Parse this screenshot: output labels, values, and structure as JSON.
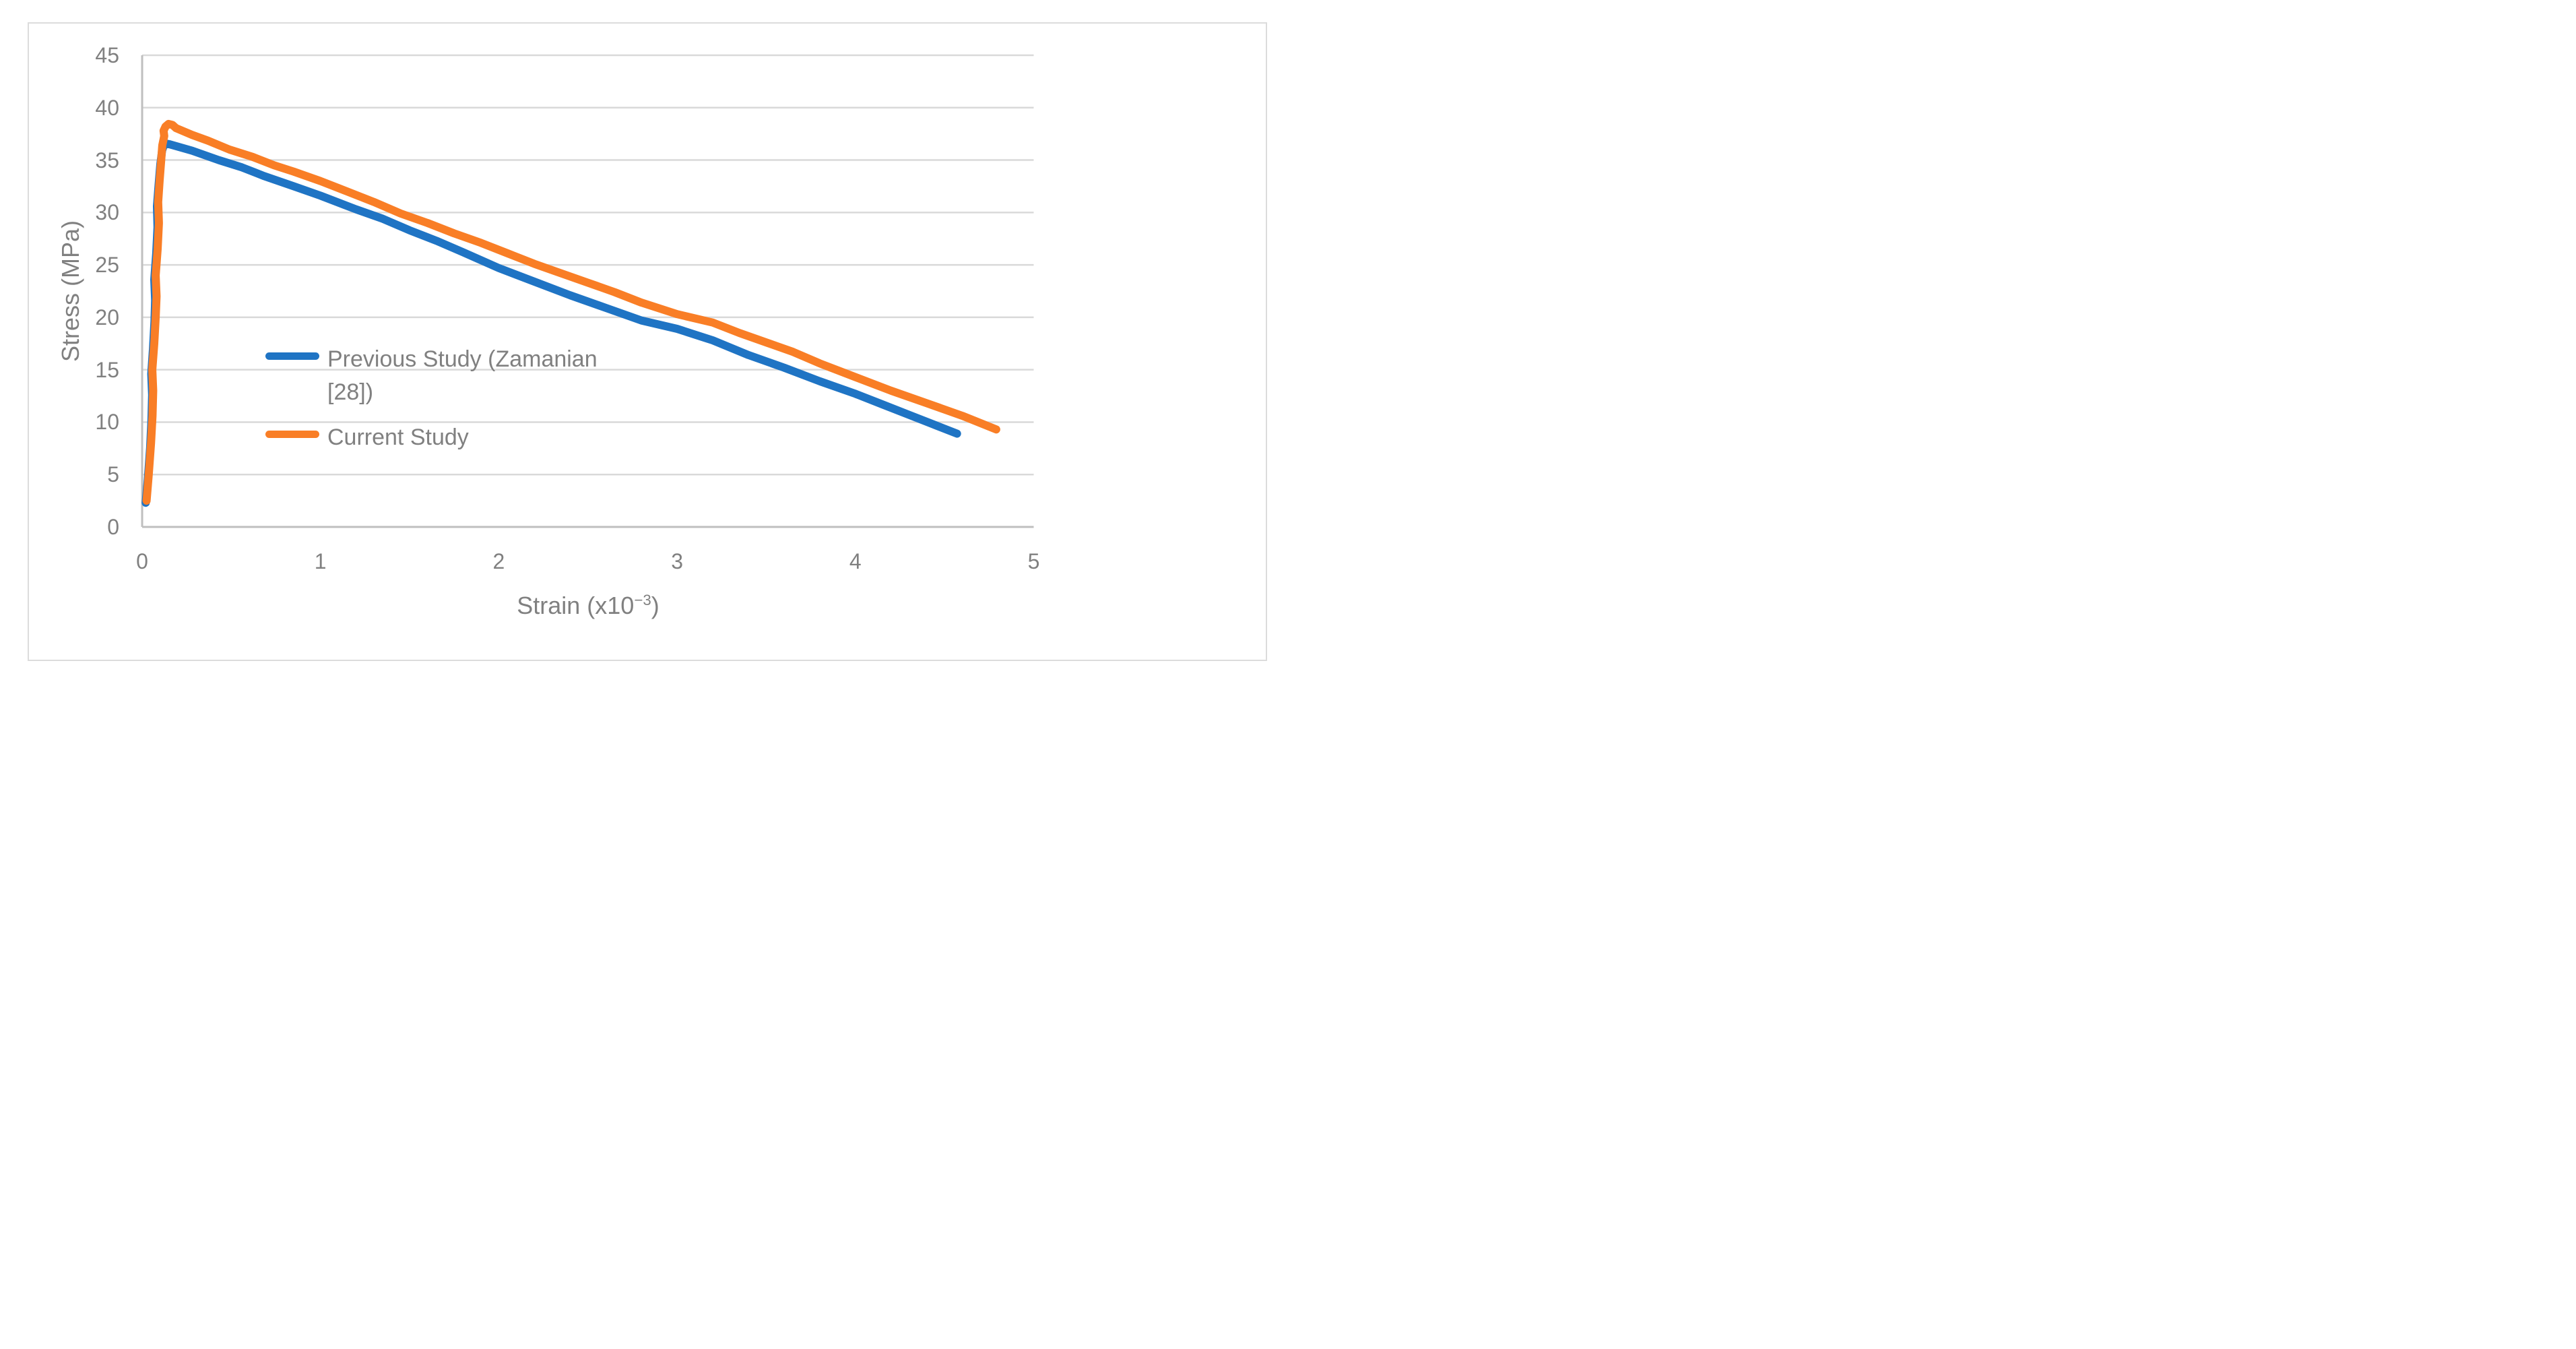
{
  "chart_data": {
    "type": "line",
    "title": "",
    "xlabel_text": "Strain (x10",
    "xlabel_sup": "−3",
    "xlabel_close": ")",
    "ylabel": "Stress (MPa)",
    "xlim": [
      0,
      5
    ],
    "ylim": [
      0,
      45
    ],
    "x_tick_labels": [
      "0",
      "1",
      "2",
      "3",
      "4",
      "5"
    ],
    "y_tick_labels": [
      "0",
      "5",
      "10",
      "15",
      "20",
      "25",
      "30",
      "35",
      "40",
      "45"
    ],
    "grid": "horizontal gridlines every 5 MPa, on",
    "legend_position": "inside plot area, left-center",
    "series": [
      {
        "name": "Previous Study (Zamanian [28])",
        "color": "#1F74C4",
        "peak_stress_mpa": 36.6,
        "end_point": [
          4.57,
          8.9
        ],
        "points": [
          [
            0.02,
            2.3
          ],
          [
            0.032,
            4.6
          ],
          [
            0.045,
            7.6
          ],
          [
            0.052,
            10.2
          ],
          [
            0.056,
            12.6
          ],
          [
            0.051,
            14.6
          ],
          [
            0.061,
            17.0
          ],
          [
            0.069,
            19.6
          ],
          [
            0.073,
            21.6
          ],
          [
            0.068,
            23.6
          ],
          [
            0.079,
            26.1
          ],
          [
            0.086,
            28.6
          ],
          [
            0.083,
            30.6
          ],
          [
            0.092,
            32.6
          ],
          [
            0.102,
            34.6
          ],
          [
            0.112,
            35.9
          ],
          [
            0.125,
            36.6
          ],
          [
            0.155,
            36.5
          ],
          [
            0.28,
            35.9
          ],
          [
            0.43,
            35.0
          ],
          [
            0.56,
            34.3
          ],
          [
            0.68,
            33.5
          ],
          [
            0.85,
            32.5
          ],
          [
            1.0,
            31.6
          ],
          [
            1.2,
            30.3
          ],
          [
            1.35,
            29.4
          ],
          [
            1.5,
            28.3
          ],
          [
            1.65,
            27.3
          ],
          [
            1.8,
            26.2
          ],
          [
            2.0,
            24.7
          ],
          [
            2.2,
            23.4
          ],
          [
            2.4,
            22.1
          ],
          [
            2.6,
            20.9
          ],
          [
            2.8,
            19.7
          ],
          [
            3.0,
            18.9
          ],
          [
            3.2,
            17.8
          ],
          [
            3.4,
            16.4
          ],
          [
            3.6,
            15.2
          ],
          [
            3.8,
            13.9
          ],
          [
            4.0,
            12.7
          ],
          [
            4.15,
            11.7
          ],
          [
            4.3,
            10.7
          ],
          [
            4.45,
            9.7
          ],
          [
            4.57,
            8.9
          ]
        ]
      },
      {
        "name": "Current Study",
        "color": "#F97E26",
        "peak_stress_mpa": 38.45,
        "end_point": [
          4.79,
          9.3
        ],
        "points": [
          [
            0.025,
            2.5
          ],
          [
            0.037,
            5.0
          ],
          [
            0.05,
            8.0
          ],
          [
            0.058,
            10.6
          ],
          [
            0.062,
            13.0
          ],
          [
            0.057,
            15.0
          ],
          [
            0.068,
            17.5
          ],
          [
            0.076,
            20.0
          ],
          [
            0.081,
            22.0
          ],
          [
            0.076,
            24.0
          ],
          [
            0.087,
            26.5
          ],
          [
            0.094,
            29.0
          ],
          [
            0.09,
            31.0
          ],
          [
            0.098,
            33.0
          ],
          [
            0.107,
            35.0
          ],
          [
            0.113,
            36.4
          ],
          [
            0.124,
            37.3
          ],
          [
            0.12,
            37.8
          ],
          [
            0.131,
            38.2
          ],
          [
            0.148,
            38.45
          ],
          [
            0.17,
            38.35
          ],
          [
            0.19,
            38.05
          ],
          [
            0.28,
            37.4
          ],
          [
            0.37,
            36.85
          ],
          [
            0.49,
            36.0
          ],
          [
            0.62,
            35.3
          ],
          [
            0.74,
            34.5
          ],
          [
            0.85,
            33.9
          ],
          [
            1.0,
            33.0
          ],
          [
            1.15,
            32.0
          ],
          [
            1.3,
            31.0
          ],
          [
            1.45,
            29.9
          ],
          [
            1.6,
            29.0
          ],
          [
            1.75,
            28.0
          ],
          [
            1.9,
            27.1
          ],
          [
            2.05,
            26.1
          ],
          [
            2.2,
            25.1
          ],
          [
            2.35,
            24.2
          ],
          [
            2.5,
            23.3
          ],
          [
            2.65,
            22.4
          ],
          [
            2.8,
            21.4
          ],
          [
            3.0,
            20.3
          ],
          [
            3.2,
            19.5
          ],
          [
            3.35,
            18.5
          ],
          [
            3.5,
            17.6
          ],
          [
            3.65,
            16.7
          ],
          [
            3.8,
            15.6
          ],
          [
            4.0,
            14.3
          ],
          [
            4.2,
            13.0
          ],
          [
            4.4,
            11.8
          ],
          [
            4.6,
            10.6
          ],
          [
            4.79,
            9.3
          ]
        ]
      }
    ]
  },
  "colors": {
    "background": "#FFFFFF",
    "chart_border": "#DCDCDC",
    "gridline": "#D9D9D9",
    "axis_line": "#BFBFBF",
    "label_text": "#808080",
    "series_previous": "#1F74C4",
    "series_current": "#F97E26"
  }
}
